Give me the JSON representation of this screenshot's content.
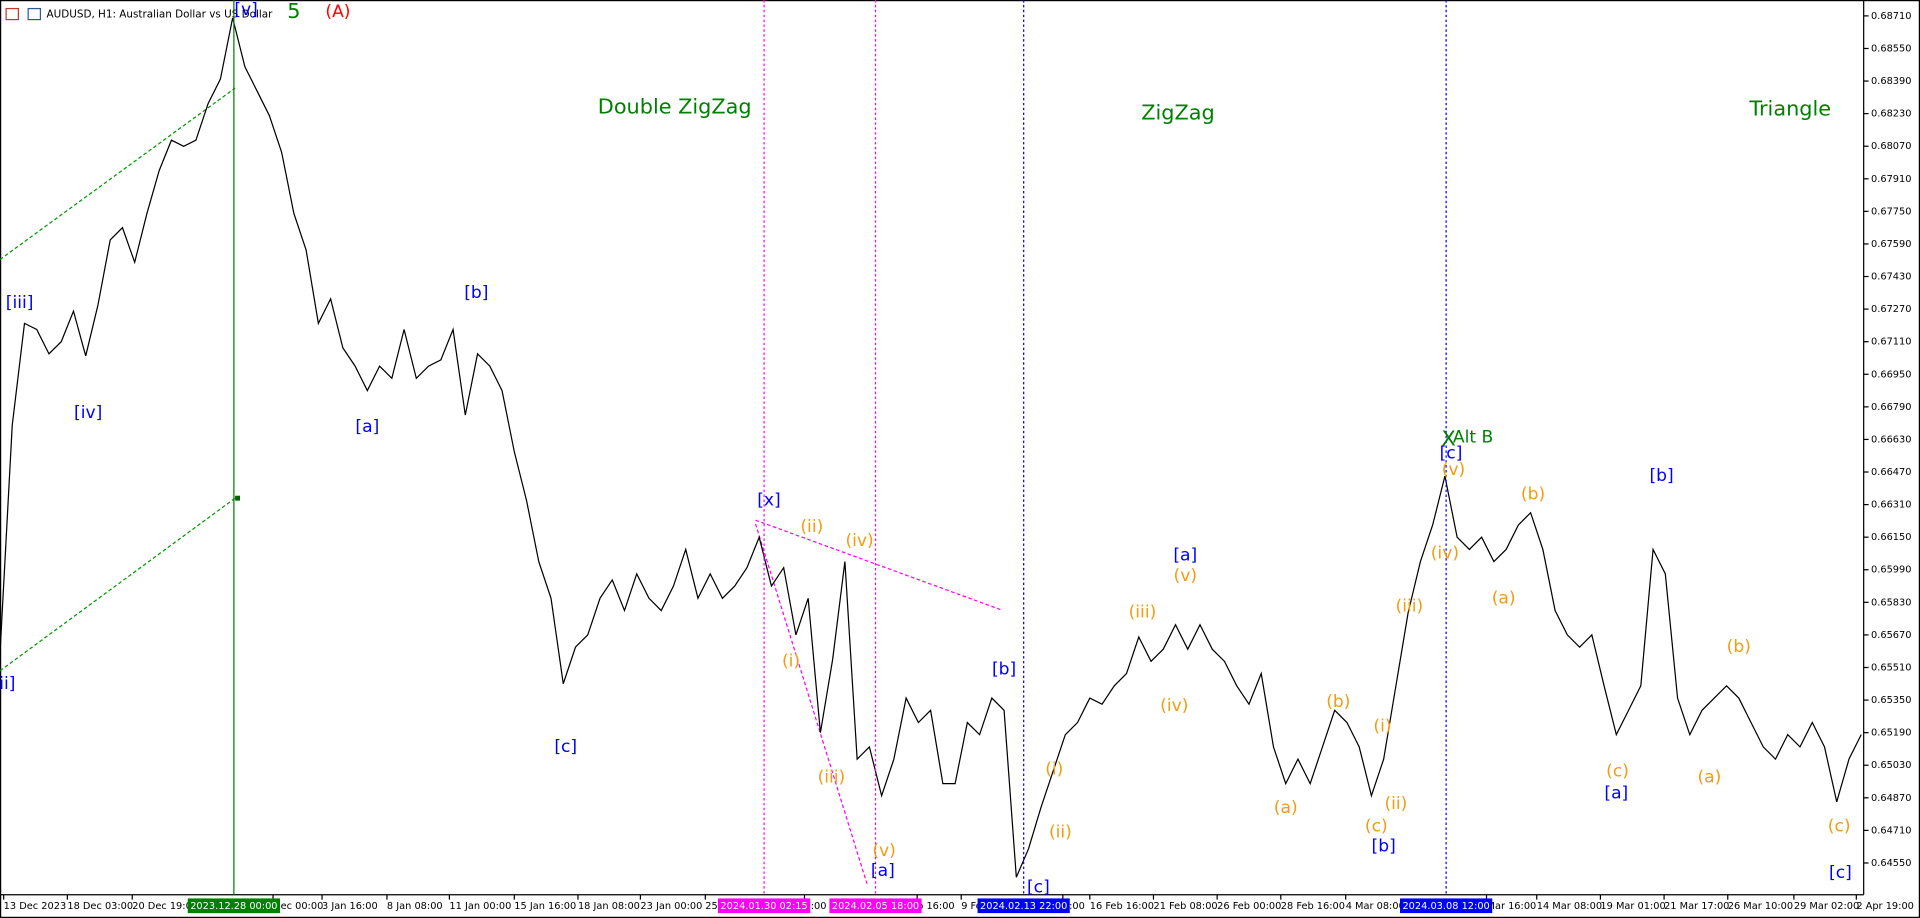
{
  "chart_data": {
    "type": "line",
    "title": "AUDUSD, H1:  Australian Dollar vs US Dollar",
    "color": "#000000",
    "values": [
      0.6558,
      0.667,
      0.672,
      0.6717,
      0.6705,
      0.6711,
      0.6726,
      0.6704,
      0.6729,
      0.6761,
      0.6767,
      0.675,
      0.6774,
      0.6795,
      0.681,
      0.6807,
      0.681,
      0.6828,
      0.684,
      0.687,
      0.6846,
      0.6834,
      0.6822,
      0.6804,
      0.6774,
      0.6756,
      0.672,
      0.6732,
      0.6708,
      0.6699,
      0.6687,
      0.6699,
      0.6693,
      0.6717,
      0.6693,
      0.6699,
      0.6702,
      0.6717,
      0.6675,
      0.6705,
      0.6699,
      0.6687,
      0.6657,
      0.6633,
      0.6603,
      0.6585,
      0.6543,
      0.6561,
      0.6567,
      0.6585,
      0.6594,
      0.6579,
      0.6597,
      0.6585,
      0.6579,
      0.6591,
      0.6609,
      0.6585,
      0.6597,
      0.6585,
      0.6591,
      0.66,
      0.6615,
      0.6591,
      0.66,
      0.6567,
      0.6585,
      0.6519,
      0.6555,
      0.6603,
      0.6506,
      0.6512,
      0.6488,
      0.6506,
      0.6536,
      0.6524,
      0.653,
      0.6494,
      0.6494,
      0.6524,
      0.6518,
      0.6536,
      0.653,
      0.6448,
      0.6462,
      0.6482,
      0.65,
      0.6518,
      0.6524,
      0.6536,
      0.6533,
      0.6542,
      0.6548,
      0.6566,
      0.6554,
      0.656,
      0.6572,
      0.656,
      0.6572,
      0.656,
      0.6554,
      0.6542,
      0.6533,
      0.6548,
      0.6512,
      0.6494,
      0.6506,
      0.6494,
      0.6512,
      0.653,
      0.6524,
      0.6512,
      0.6488,
      0.6506,
      0.6542,
      0.6578,
      0.6603,
      0.6621,
      0.6645,
      0.6615,
      0.6609,
      0.6615,
      0.6603,
      0.6609,
      0.6621,
      0.6627,
      0.6609,
      0.6579,
      0.6567,
      0.6561,
      0.6567,
      0.6542,
      0.6518,
      0.653,
      0.6542,
      0.6609,
      0.6597,
      0.6536,
      0.6518,
      0.653,
      0.6536,
      0.6542,
      0.6536,
      0.6524,
      0.6512,
      0.6506,
      0.6518,
      0.6512,
      0.6524,
      0.6512,
      0.6485,
      0.6506,
      0.6518
    ],
    "xlim": [
      0,
      152.2
    ],
    "ylim": [
      0.64394,
      0.68764
    ],
    "yticks": [
      {
        "value": 0.6871,
        "label": "0.68710"
      },
      {
        "value": 0.6855,
        "label": "0.68550"
      },
      {
        "value": 0.6839,
        "label": "0.68390"
      },
      {
        "value": 0.6823,
        "label": "0.68230"
      },
      {
        "value": 0.6807,
        "label": "0.68070"
      },
      {
        "value": 0.6791,
        "label": "0.67910"
      },
      {
        "value": 0.6775,
        "label": "0.67750"
      },
      {
        "value": 0.6759,
        "label": "0.67590"
      },
      {
        "value": 0.6743,
        "label": "0.67430"
      },
      {
        "value": 0.6727,
        "label": "0.67270"
      },
      {
        "value": 0.6711,
        "label": "0.67110"
      },
      {
        "value": 0.6695,
        "label": "0.66950"
      },
      {
        "value": 0.6679,
        "label": "0.66790"
      },
      {
        "value": 0.6663,
        "label": "0.66630"
      },
      {
        "value": 0.6647,
        "label": "0.66470"
      },
      {
        "value": 0.6631,
        "label": "0.66310"
      },
      {
        "value": 0.6615,
        "label": "0.66150"
      },
      {
        "value": 0.6599,
        "label": "0.65990"
      },
      {
        "value": 0.6583,
        "label": "0.65830"
      },
      {
        "value": 0.6567,
        "label": "0.65670"
      },
      {
        "value": 0.6551,
        "label": "0.65510"
      },
      {
        "value": 0.6535,
        "label": "0.65350"
      },
      {
        "value": 0.6519,
        "label": "0.65190"
      },
      {
        "value": 0.6503,
        "label": "0.65030"
      },
      {
        "value": 0.6487,
        "label": "0.64870"
      },
      {
        "value": 0.6471,
        "label": "0.64710"
      },
      {
        "value": 0.6455,
        "label": "0.64550"
      }
    ],
    "xticks": [
      {
        "value": 0.3,
        "label": "13 Dec 2023"
      },
      {
        "value": 5.5,
        "label": "18 Dec 03:00"
      },
      {
        "value": 10.8,
        "label": "20 Dec 19:00"
      },
      {
        "value": 22.3,
        "label": "Dec 00:00"
      },
      {
        "value": 26.3,
        "label": "3 Jan 16:00"
      },
      {
        "value": 31.6,
        "label": "8 Jan 08:00"
      },
      {
        "value": 36.7,
        "label": "11 Jan 00:00"
      },
      {
        "value": 42,
        "label": "15 Jan 16:00"
      },
      {
        "value": 47.2,
        "label": "18 Jan 08:00"
      },
      {
        "value": 52.3,
        "label": "23 Jan 00:00"
      },
      {
        "value": 57.6,
        "label": "25 J"
      },
      {
        "value": 65.7,
        "label": "8:00"
      },
      {
        "value": 74.9,
        "label": "b 16:00"
      },
      {
        "value": 78.5,
        "label": "9 Feb"
      },
      {
        "value": 86.8,
        "label": "0:00"
      },
      {
        "value": 89,
        "label": "16 Feb 16:00"
      },
      {
        "value": 94.2,
        "label": "21 Feb 08:00"
      },
      {
        "value": 99.4,
        "label": "26 Feb 00:00"
      },
      {
        "value": 104.6,
        "label": "28 Feb 16:00"
      },
      {
        "value": 109.9,
        "label": "4 Mar 08:00"
      },
      {
        "value": 121.4,
        "label": "Mar 16:00"
      },
      {
        "value": 125.5,
        "label": "14 Mar 08:00"
      },
      {
        "value": 130.7,
        "label": "19 Mar 01:00"
      },
      {
        "value": 135.9,
        "label": "21 Mar 17:00"
      },
      {
        "value": 141.1,
        "label": "26 Mar 10:00"
      },
      {
        "value": 146.5,
        "label": "29 Mar 02:00"
      },
      {
        "value": 151.6,
        "label": "2 Apr 19:00"
      }
    ],
    "vlines": [
      {
        "x": 19.1,
        "label": "2023.12.28 00:00",
        "color": "#008000",
        "dotted": false
      },
      {
        "x": 62.4,
        "label": "2024.01.30 02:15",
        "color": "#ff00ff",
        "dotted": true
      },
      {
        "x": 71.5,
        "label": "2024.02.05 18:00",
        "color": "#ff00ff",
        "dotted": true
      },
      {
        "x": 83.6,
        "label": "2024.02.13 22:00",
        "color": "#0000ff",
        "dotted": true
      },
      {
        "x": 118.1,
        "label": "2024.03.08 12:00",
        "color": "#0000ff",
        "dotted": true
      }
    ],
    "annotations": [
      {
        "text": "[v]",
        "color": "#0000ff",
        "x": 20.1,
        "y": 0.6874
      },
      {
        "text": "5",
        "color": "#008000",
        "x": 24,
        "y": 0.6873
      },
      {
        "text": "(A)",
        "color": "#ff0000",
        "x": 27.6,
        "y": 0.6873
      },
      {
        "text": "[iii]",
        "color": "#0000ff",
        "x": 1.6,
        "y": 0.673
      },
      {
        "text": "ii]",
        "color": "#0000ff",
        "x": 0.6,
        "y": 0.6543
      },
      {
        "text": "[iv]",
        "color": "#0000ff",
        "x": 7.2,
        "y": 0.6676
      },
      {
        "text": "[b]",
        "color": "#0000ff",
        "x": 38.9,
        "y": 0.6735
      },
      {
        "text": "[a]",
        "color": "#0000ff",
        "x": 30,
        "y": 0.6669
      },
      {
        "text": "[c]",
        "color": "#0000ff",
        "x": 46.2,
        "y": 0.6512
      },
      {
        "text": "Double ZigZag",
        "color": "#008000",
        "x": 55.1,
        "y": 0.6826
      },
      {
        "text": "ZigZag",
        "color": "#008000",
        "x": 96.2,
        "y": 0.6823
      },
      {
        "text": "Triangle",
        "color": "#008000",
        "x": 146.2,
        "y": 0.6825
      },
      {
        "text": "[x]",
        "color": "#0000ff",
        "x": 62.8,
        "y": 0.6633
      },
      {
        "text": "(ii)",
        "color": "#f39c12",
        "x": 66.3,
        "y": 0.662
      },
      {
        "text": "(iv)",
        "color": "#f39c12",
        "x": 70.2,
        "y": 0.6613
      },
      {
        "text": "(i)",
        "color": "#f39c12",
        "x": 64.6,
        "y": 0.6554
      },
      {
        "text": "(iii)",
        "color": "#f39c12",
        "x": 67.9,
        "y": 0.6497
      },
      {
        "text": "(v)",
        "color": "#f39c12",
        "x": 72.2,
        "y": 0.6461
      },
      {
        "text": "[a]",
        "color": "#0000ff",
        "x": 72.1,
        "y": 0.6451
      },
      {
        "text": "[b]",
        "color": "#0000ff",
        "x": 82,
        "y": 0.655
      },
      {
        "text": "[c]",
        "color": "#0000ff",
        "x": 84.8,
        "y": 0.6443
      },
      {
        "text": "(i)",
        "color": "#f39c12",
        "x": 86.1,
        "y": 0.6501
      },
      {
        "text": "(ii)",
        "color": "#f39c12",
        "x": 86.6,
        "y": 0.647
      },
      {
        "text": "(iii)",
        "color": "#f39c12",
        "x": 93.3,
        "y": 0.6578
      },
      {
        "text": "[a]",
        "color": "#0000ff",
        "x": 96.8,
        "y": 0.6606
      },
      {
        "text": "(v)",
        "color": "#f39c12",
        "x": 96.8,
        "y": 0.6596
      },
      {
        "text": "(iv)",
        "color": "#f39c12",
        "x": 95.9,
        "y": 0.6532
      },
      {
        "text": "(a)",
        "color": "#f39c12",
        "x": 105,
        "y": 0.6482
      },
      {
        "text": "(b)",
        "color": "#f39c12",
        "x": 109.3,
        "y": 0.6534
      },
      {
        "text": "(c)",
        "color": "#f39c12",
        "x": 112.4,
        "y": 0.6473
      },
      {
        "text": "[b]",
        "color": "#0000ff",
        "x": 113,
        "y": 0.6463
      },
      {
        "text": "(i)",
        "color": "#f39c12",
        "x": 112.9,
        "y": 0.6522
      },
      {
        "text": "(ii)",
        "color": "#f39c12",
        "x": 114,
        "y": 0.6484
      },
      {
        "text": "(iii)",
        "color": "#f39c12",
        "x": 115.1,
        "y": 0.6581
      },
      {
        "text": "(iv)",
        "color": "#f39c12",
        "x": 118,
        "y": 0.6607
      },
      {
        "text": "[c]",
        "color": "#0000ff",
        "x": 118.5,
        "y": 0.6656
      },
      {
        "text": "(v)",
        "color": "#f39c12",
        "x": 118.7,
        "y": 0.6648
      },
      {
        "text": "X",
        "color": "#008000",
        "x": 118.3,
        "y": 0.6663
      },
      {
        "text": "Alt B",
        "color": "#008000",
        "x": 120.3,
        "y": 0.6664
      },
      {
        "text": "(b)",
        "color": "#f39c12",
        "x": 125.2,
        "y": 0.6636
      },
      {
        "text": "(a)",
        "color": "#f39c12",
        "x": 122.8,
        "y": 0.6585
      },
      {
        "text": "[b]",
        "color": "#0000ff",
        "x": 135.7,
        "y": 0.6645
      },
      {
        "text": "(c)",
        "color": "#f39c12",
        "x": 132.1,
        "y": 0.65
      },
      {
        "text": "[a]",
        "color": "#0000ff",
        "x": 132,
        "y": 0.6489
      },
      {
        "text": "(a)",
        "color": "#f39c12",
        "x": 139.6,
        "y": 0.6497
      },
      {
        "text": "(b)",
        "color": "#f39c12",
        "x": 142,
        "y": 0.6561
      },
      {
        "text": "(c)",
        "color": "#f39c12",
        "x": 150.2,
        "y": 0.6473
      },
      {
        "text": "[c]",
        "color": "#0000ff",
        "x": 150.3,
        "y": 0.645
      }
    ]
  }
}
